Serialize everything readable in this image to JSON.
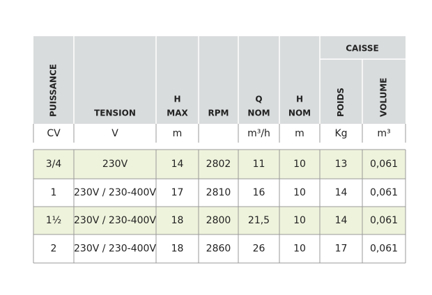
{
  "header": {
    "group": "CAISSE",
    "columns": [
      [
        "PUISSANCE"
      ],
      [
        "TENSION"
      ],
      [
        "H",
        "MAX"
      ],
      [
        "RPM"
      ],
      [
        "Q",
        "NOM"
      ],
      [
        "H",
        "NOM"
      ],
      [
        "POIDS"
      ],
      [
        "VOLUME"
      ]
    ]
  },
  "units": [
    "CV",
    "V",
    "m",
    null,
    "m³/h",
    "m",
    "Kg",
    "m³"
  ],
  "rows": [
    [
      "3/4",
      "230V",
      "14",
      "2802",
      "11",
      "10",
      "13",
      "0,061"
    ],
    [
      "1",
      "230V / 230-400V",
      "17",
      "2810",
      "16",
      "10",
      "14",
      "0,061"
    ],
    [
      "1½",
      "230V / 230-400V",
      "18",
      "2800",
      "21,5",
      "10",
      "14",
      "0,061"
    ],
    [
      "2",
      "230V / 230-400V",
      "18",
      "2860",
      "26",
      "10",
      "17",
      "0,061"
    ]
  ]
}
